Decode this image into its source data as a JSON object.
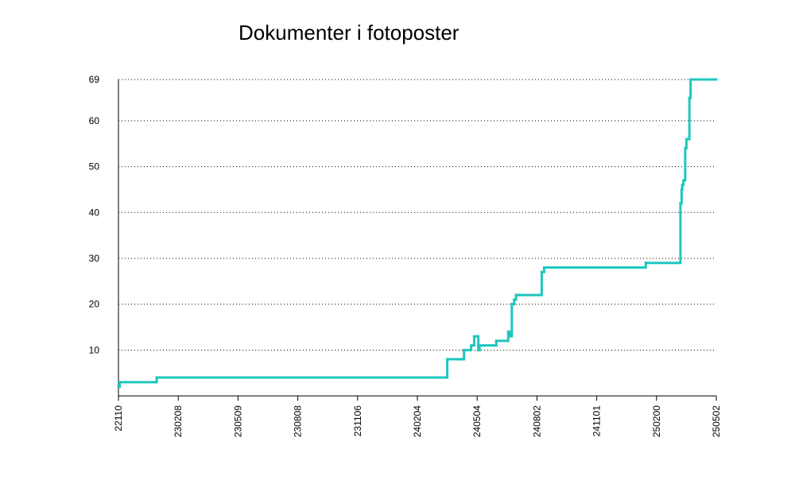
{
  "chart_data": {
    "type": "line",
    "title": "Dokumenter i fotoposter",
    "xlabel": "",
    "ylabel": "",
    "x_tick_labels": [
      "22110",
      "230208",
      "230509",
      "230808",
      "231106",
      "240204",
      "240504",
      "240802",
      "241101",
      "250200",
      "250502"
    ],
    "y_ticks": [
      10,
      20,
      30,
      40,
      50,
      60,
      69
    ],
    "xlim": [
      0,
      10
    ],
    "ylim": [
      0,
      69
    ],
    "grid": "horizontal dotted",
    "line_color": "#1fc7c0",
    "series": [
      {
        "x": [
          0,
          0.02,
          0.62,
          0.64,
          5.48,
          5.5,
          5.75,
          5.78,
          5.88,
          5.9,
          5.95,
          6.0,
          6.02,
          6.04,
          6.3,
          6.32,
          6.5,
          6.52,
          6.55,
          6.58,
          6.62,
          6.65,
          6.7,
          7.05,
          7.08,
          7.12,
          8.8,
          8.82,
          9.38,
          9.4,
          9.42,
          9.43,
          9.45,
          9.48,
          9.5,
          9.52,
          9.55,
          9.57,
          9.6,
          10.0
        ],
        "y": [
          2,
          3,
          3,
          4,
          4,
          8,
          8,
          10,
          10,
          11,
          13,
          13,
          10,
          11,
          11,
          12,
          12,
          14,
          13,
          20,
          21,
          22,
          22,
          22,
          27,
          28,
          28,
          29,
          29,
          42,
          45,
          46,
          47,
          54,
          56,
          56,
          65,
          69,
          69,
          69
        ]
      }
    ]
  }
}
